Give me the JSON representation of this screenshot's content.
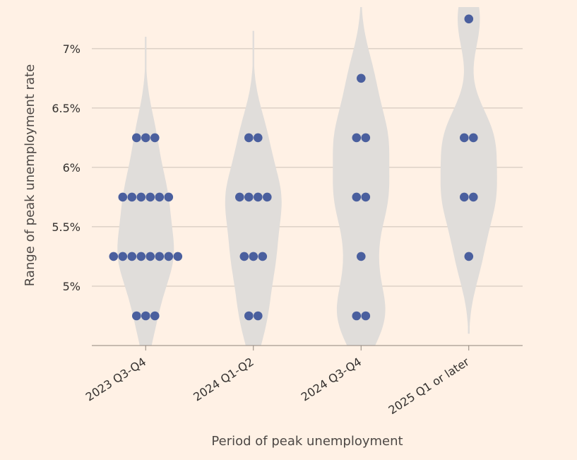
{
  "chart_data": {
    "type": "scatter",
    "subtype": "violin-beeswarm",
    "xlabel": "Period of peak unemployment",
    "ylabel": "Range of peak unemployment rate",
    "categories": [
      "2023 Q3-Q4",
      "2024 Q1-Q2",
      "2024 Q3-Q4",
      "2025 Q1 or later"
    ],
    "ylim": [
      4.5,
      7.35
    ],
    "yticks": [
      5,
      5.5,
      6,
      6.5,
      7
    ],
    "ytick_labels": [
      "5%",
      "5.5%",
      "6%",
      "6.5%",
      "7%"
    ],
    "grid": true,
    "colors": {
      "background": "#fff1e5",
      "dot": "#4a5f9e",
      "violin": "#e0ddda",
      "grid": "#ccc1b7",
      "text": "#33302e"
    },
    "groups": [
      {
        "category": "2023 Q3-Q4",
        "points": [
          {
            "y": 6.25,
            "count": 3
          },
          {
            "y": 5.75,
            "count": 6
          },
          {
            "y": 5.25,
            "count": 8
          },
          {
            "y": 4.75,
            "count": 3
          }
        ]
      },
      {
        "category": "2024 Q1-Q2",
        "points": [
          {
            "y": 6.25,
            "count": 2
          },
          {
            "y": 5.75,
            "count": 4
          },
          {
            "y": 5.25,
            "count": 3
          },
          {
            "y": 4.75,
            "count": 2
          }
        ]
      },
      {
        "category": "2024 Q3-Q4",
        "points": [
          {
            "y": 6.75,
            "count": 1
          },
          {
            "y": 6.25,
            "count": 2
          },
          {
            "y": 5.75,
            "count": 2
          },
          {
            "y": 5.25,
            "count": 1
          },
          {
            "y": 4.75,
            "count": 2
          }
        ]
      },
      {
        "category": "2025 Q1 or later",
        "points": [
          {
            "y": 7.25,
            "count": 1
          },
          {
            "y": 6.25,
            "count": 2
          },
          {
            "y": 5.75,
            "count": 2
          },
          {
            "y": 5.25,
            "count": 1
          }
        ]
      }
    ]
  }
}
